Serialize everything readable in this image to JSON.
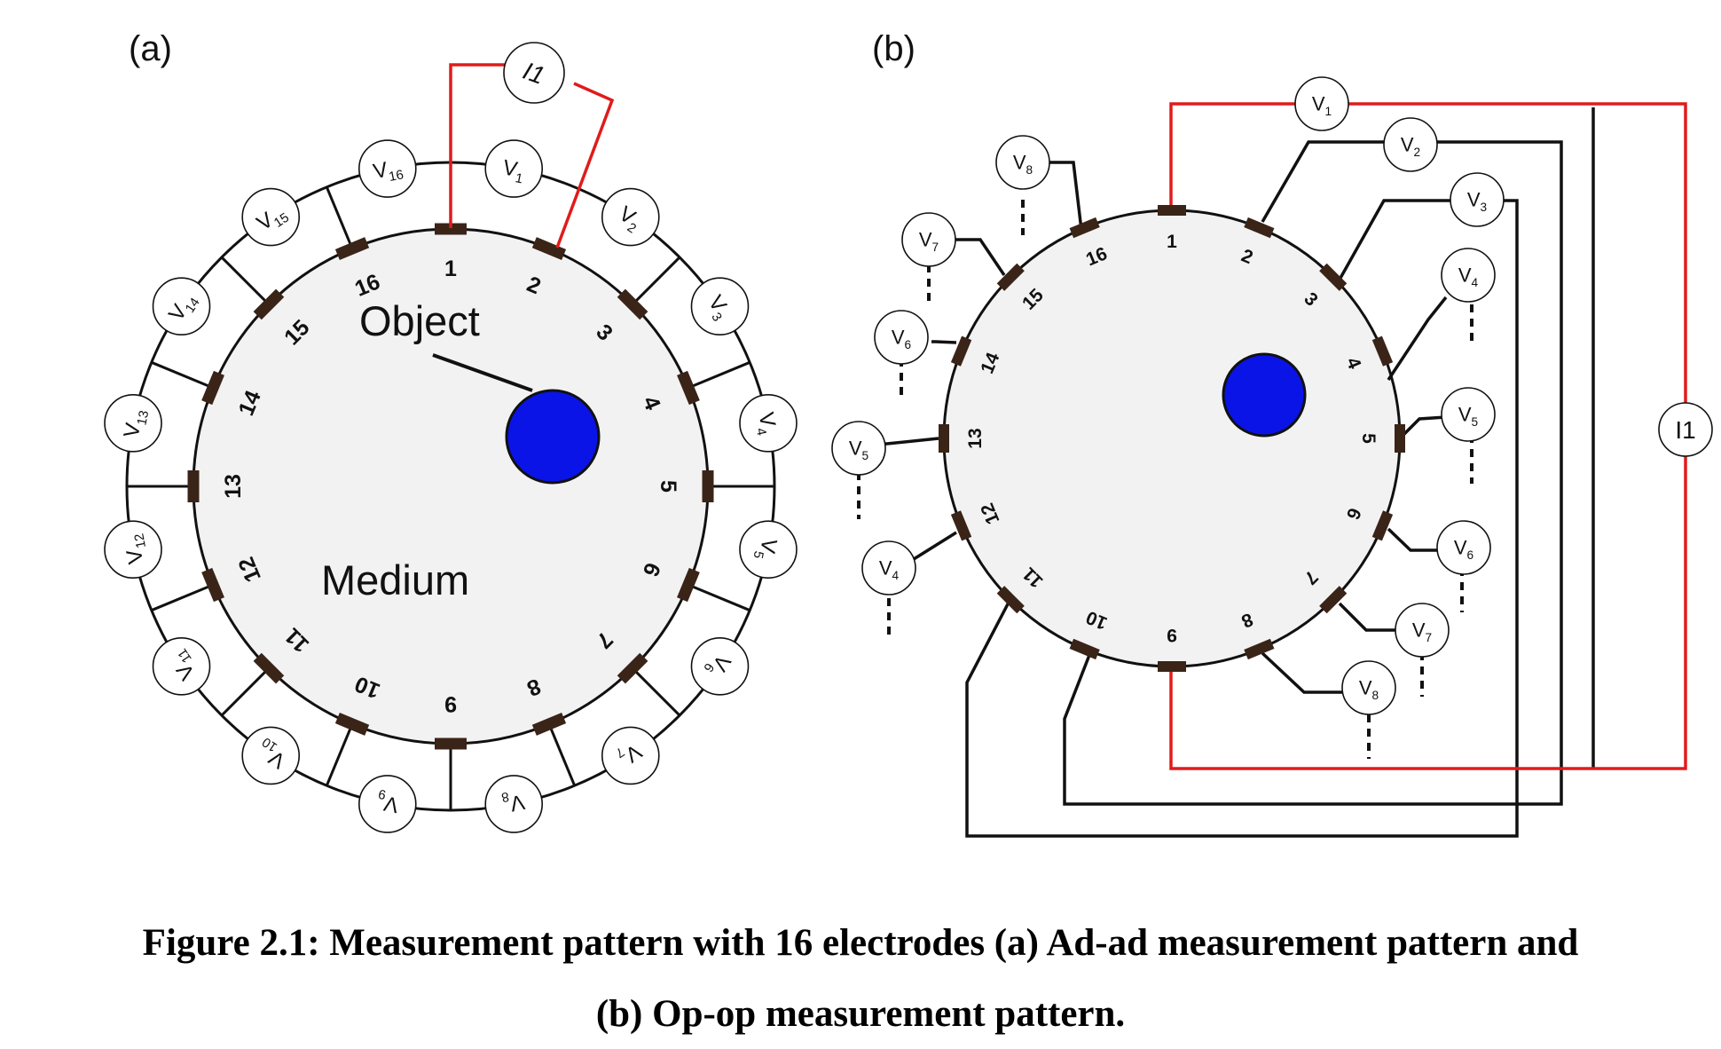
{
  "panel_a": {
    "label": "(a)",
    "object_label": "Object",
    "medium_label": "Medium",
    "current_source": "I1",
    "electrodes": [
      "1",
      "2",
      "3",
      "4",
      "5",
      "6",
      "7",
      "8",
      "9",
      "10",
      "11",
      "12",
      "13",
      "14",
      "15",
      "16"
    ],
    "voltmeters": [
      "V1",
      "V2",
      "V3",
      "V4",
      "V5",
      "V6",
      "V7",
      "V8",
      "V9",
      "V10",
      "V11",
      "V12",
      "V13",
      "V14",
      "V15",
      "V16"
    ]
  },
  "panel_b": {
    "label": "(b)",
    "current_source": "I1",
    "electrodes": [
      "1",
      "2",
      "3",
      "4",
      "5",
      "6",
      "7",
      "8",
      "9",
      "10",
      "11",
      "12",
      "13",
      "14",
      "15",
      "16"
    ],
    "voltmeters_right": [
      "V1",
      "V2",
      "V3",
      "V4",
      "V5",
      "V6",
      "V7",
      "V8"
    ],
    "voltmeters_left": [
      "V8",
      "V7",
      "V6",
      "V5",
      "V4"
    ]
  },
  "caption": {
    "line1": "Figure 2.1: Measurement pattern with 16 electrodes (a) Ad-ad measurement pattern and",
    "line2": "(b) Op-op measurement pattern."
  },
  "colors": {
    "current_wire": "#e01b1b",
    "object_fill": "#0a14e6",
    "medium_fill": "#f2f2f2",
    "electrode": "#3a2418"
  }
}
